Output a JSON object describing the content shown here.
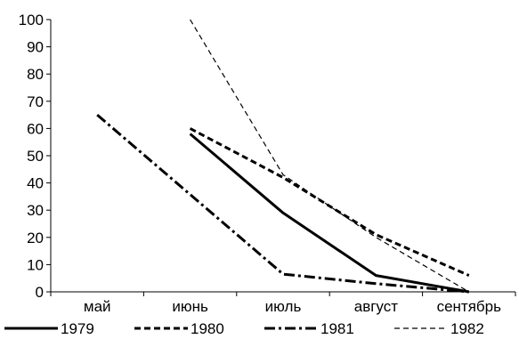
{
  "chart_data": {
    "type": "line",
    "categories": [
      "май",
      "июнь",
      "июль",
      "август",
      "сентябрь"
    ],
    "ylim": [
      0,
      100
    ],
    "yticks": [
      0,
      10,
      20,
      30,
      40,
      50,
      60,
      70,
      80,
      90,
      100
    ],
    "grid": false,
    "legend_position": "bottom",
    "series": [
      {
        "name": "1979",
        "style": "solid-thick",
        "values": [
          null,
          58,
          29,
          6,
          0
        ]
      },
      {
        "name": "1980",
        "style": "dashed-thick",
        "values": [
          null,
          60,
          42,
          21,
          6
        ]
      },
      {
        "name": "1981",
        "style": "dash-dot-thick",
        "values": [
          65,
          null,
          6.5,
          3,
          0
        ]
      },
      {
        "name": "1982",
        "style": "dashed-thin",
        "values": [
          null,
          100,
          43,
          20,
          0
        ]
      }
    ],
    "colors": {
      "line": "#000000",
      "axis": "#000000",
      "background": "#ffffff"
    }
  }
}
